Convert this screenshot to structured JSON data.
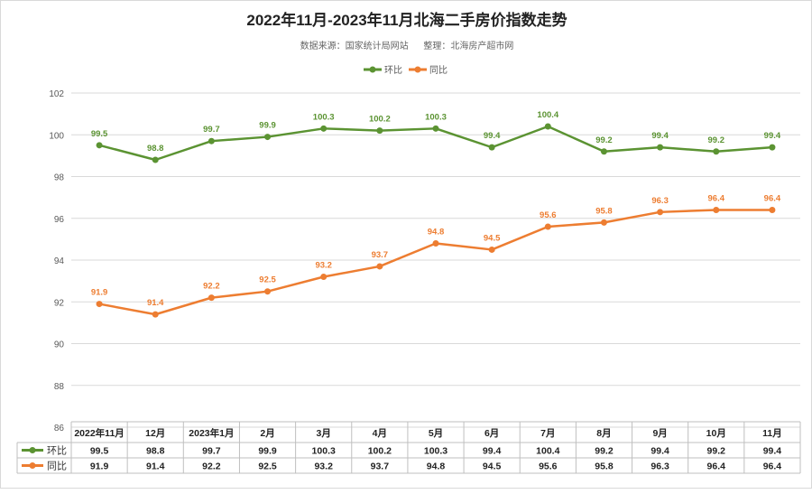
{
  "chart_data": {
    "type": "line",
    "title": "2022年11月-2023年11月北海二手房价指数走势",
    "subtitle": "数据来源：国家统计局网站      整理：北海房产超市网",
    "categories": [
      "2022年11月",
      "12月",
      "2023年1月",
      "2月",
      "3月",
      "4月",
      "5月",
      "6月",
      "7月",
      "8月",
      "9月",
      "10月",
      "11月"
    ],
    "series": [
      {
        "name": "环比",
        "color": "#5B9332",
        "values": [
          99.5,
          98.8,
          99.7,
          99.9,
          100.3,
          100.2,
          100.3,
          99.4,
          100.4,
          99.2,
          99.4,
          99.2,
          99.4
        ]
      },
      {
        "name": "同比",
        "color": "#ED7D31",
        "values": [
          91.9,
          91.4,
          92.2,
          92.5,
          93.2,
          93.7,
          94.8,
          94.5,
          95.6,
          95.8,
          96.3,
          96.4,
          96.4
        ]
      }
    ],
    "ylim": [
      86,
      102
    ],
    "yticks": [
      "86",
      "88",
      "90",
      "92",
      "94",
      "96",
      "98",
      "100",
      "102"
    ],
    "grid": true,
    "legend": "top",
    "data_labels": true,
    "data_table": true
  },
  "watermark": "房产超市"
}
